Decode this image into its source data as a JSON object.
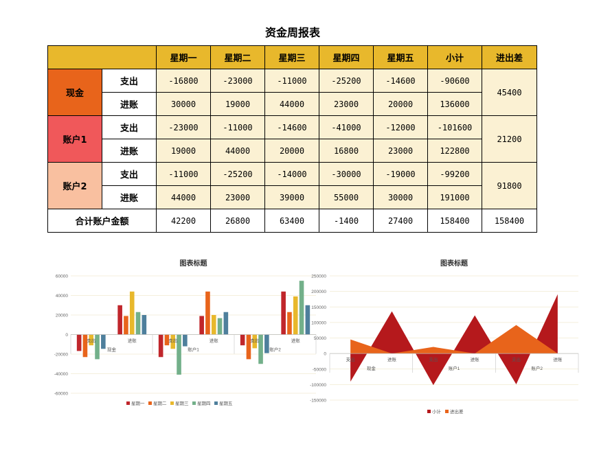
{
  "title": "资金周报表",
  "table": {
    "columns": [
      "星期一",
      "星期二",
      "星期三",
      "星期四",
      "星期五",
      "小计",
      "进出差"
    ],
    "groups": [
      {
        "name": "现金",
        "color": "#e8641b",
        "rows": [
          {
            "label": "支出",
            "values": [
              "-16800",
              "-23000",
              "-11000",
              "-25200",
              "-14600",
              "-90600"
            ]
          },
          {
            "label": "进账",
            "values": [
              "30000",
              "19000",
              "44000",
              "23000",
              "20000",
              "136000"
            ]
          }
        ],
        "diff": "45400"
      },
      {
        "name": "账户1",
        "color": "#f0585a",
        "rows": [
          {
            "label": "支出",
            "values": [
              "-23000",
              "-11000",
              "-14600",
              "-41000",
              "-12000",
              "-101600"
            ]
          },
          {
            "label": "进账",
            "values": [
              "19000",
              "44000",
              "20000",
              "16800",
              "23000",
              "122800"
            ]
          }
        ],
        "diff": "21200"
      },
      {
        "name": "账户2",
        "color": "#f9c0a0",
        "rows": [
          {
            "label": "支出",
            "values": [
              "-11000",
              "-25200",
              "-14000",
              "-30000",
              "-19000",
              "-99200"
            ]
          },
          {
            "label": "进账",
            "values": [
              "44000",
              "23000",
              "39000",
              "55000",
              "30000",
              "191000"
            ]
          }
        ],
        "diff": "91800"
      }
    ],
    "total": {
      "label": "合计账户金额",
      "values": [
        "42200",
        "26800",
        "63400",
        "-1400",
        "27400",
        "158400",
        "158400"
      ]
    }
  },
  "chart_data": [
    {
      "type": "bar",
      "title": "图表标题",
      "groups": [
        "现金",
        "账户1",
        "账户2"
      ],
      "categories": [
        "支出",
        "进账",
        "支出",
        "进账",
        "支出",
        "进账"
      ],
      "series": [
        {
          "name": "星期一",
          "color": "#c0262b",
          "values": [
            -16800,
            30000,
            -23000,
            19000,
            -11000,
            44000
          ]
        },
        {
          "name": "星期二",
          "color": "#e8641b",
          "values": [
            -23000,
            19000,
            -11000,
            44000,
            -25200,
            23000
          ]
        },
        {
          "name": "星期三",
          "color": "#e8b82c",
          "values": [
            -11000,
            44000,
            -14600,
            20000,
            -14000,
            39000
          ]
        },
        {
          "name": "星期四",
          "color": "#73b08a",
          "values": [
            -25200,
            23000,
            -41000,
            16800,
            -30000,
            55000
          ]
        },
        {
          "name": "星期五",
          "color": "#4e7f9c",
          "values": [
            -14600,
            20000,
            -12000,
            23000,
            -19000,
            30000
          ]
        }
      ],
      "ylim": [
        -60000,
        60000
      ],
      "yticks": [
        "60000",
        "40000",
        "20000",
        "0",
        "-20000",
        "-40000",
        "-60000"
      ],
      "legend": "bottom"
    },
    {
      "type": "area",
      "title": "图表标题",
      "groups": [
        "现金",
        "账户1",
        "账户2"
      ],
      "categories": [
        "支出",
        "进账",
        "支出",
        "进账",
        "支出",
        "进账"
      ],
      "series": [
        {
          "name": "小计",
          "color": "#b5191c",
          "values": [
            -90600,
            136000,
            -101600,
            122800,
            -99200,
            191000
          ]
        },
        {
          "name": "进出差",
          "color": "#e8641b",
          "values": [
            45400,
            0,
            21200,
            0,
            91800,
            0
          ]
        }
      ],
      "ylim": [
        -150000,
        250000
      ],
      "yticks": [
        "250000",
        "200000",
        "150000",
        "100000",
        "50000",
        "0",
        "-50000",
        "-100000",
        "-150000"
      ],
      "legend": "bottom"
    }
  ]
}
